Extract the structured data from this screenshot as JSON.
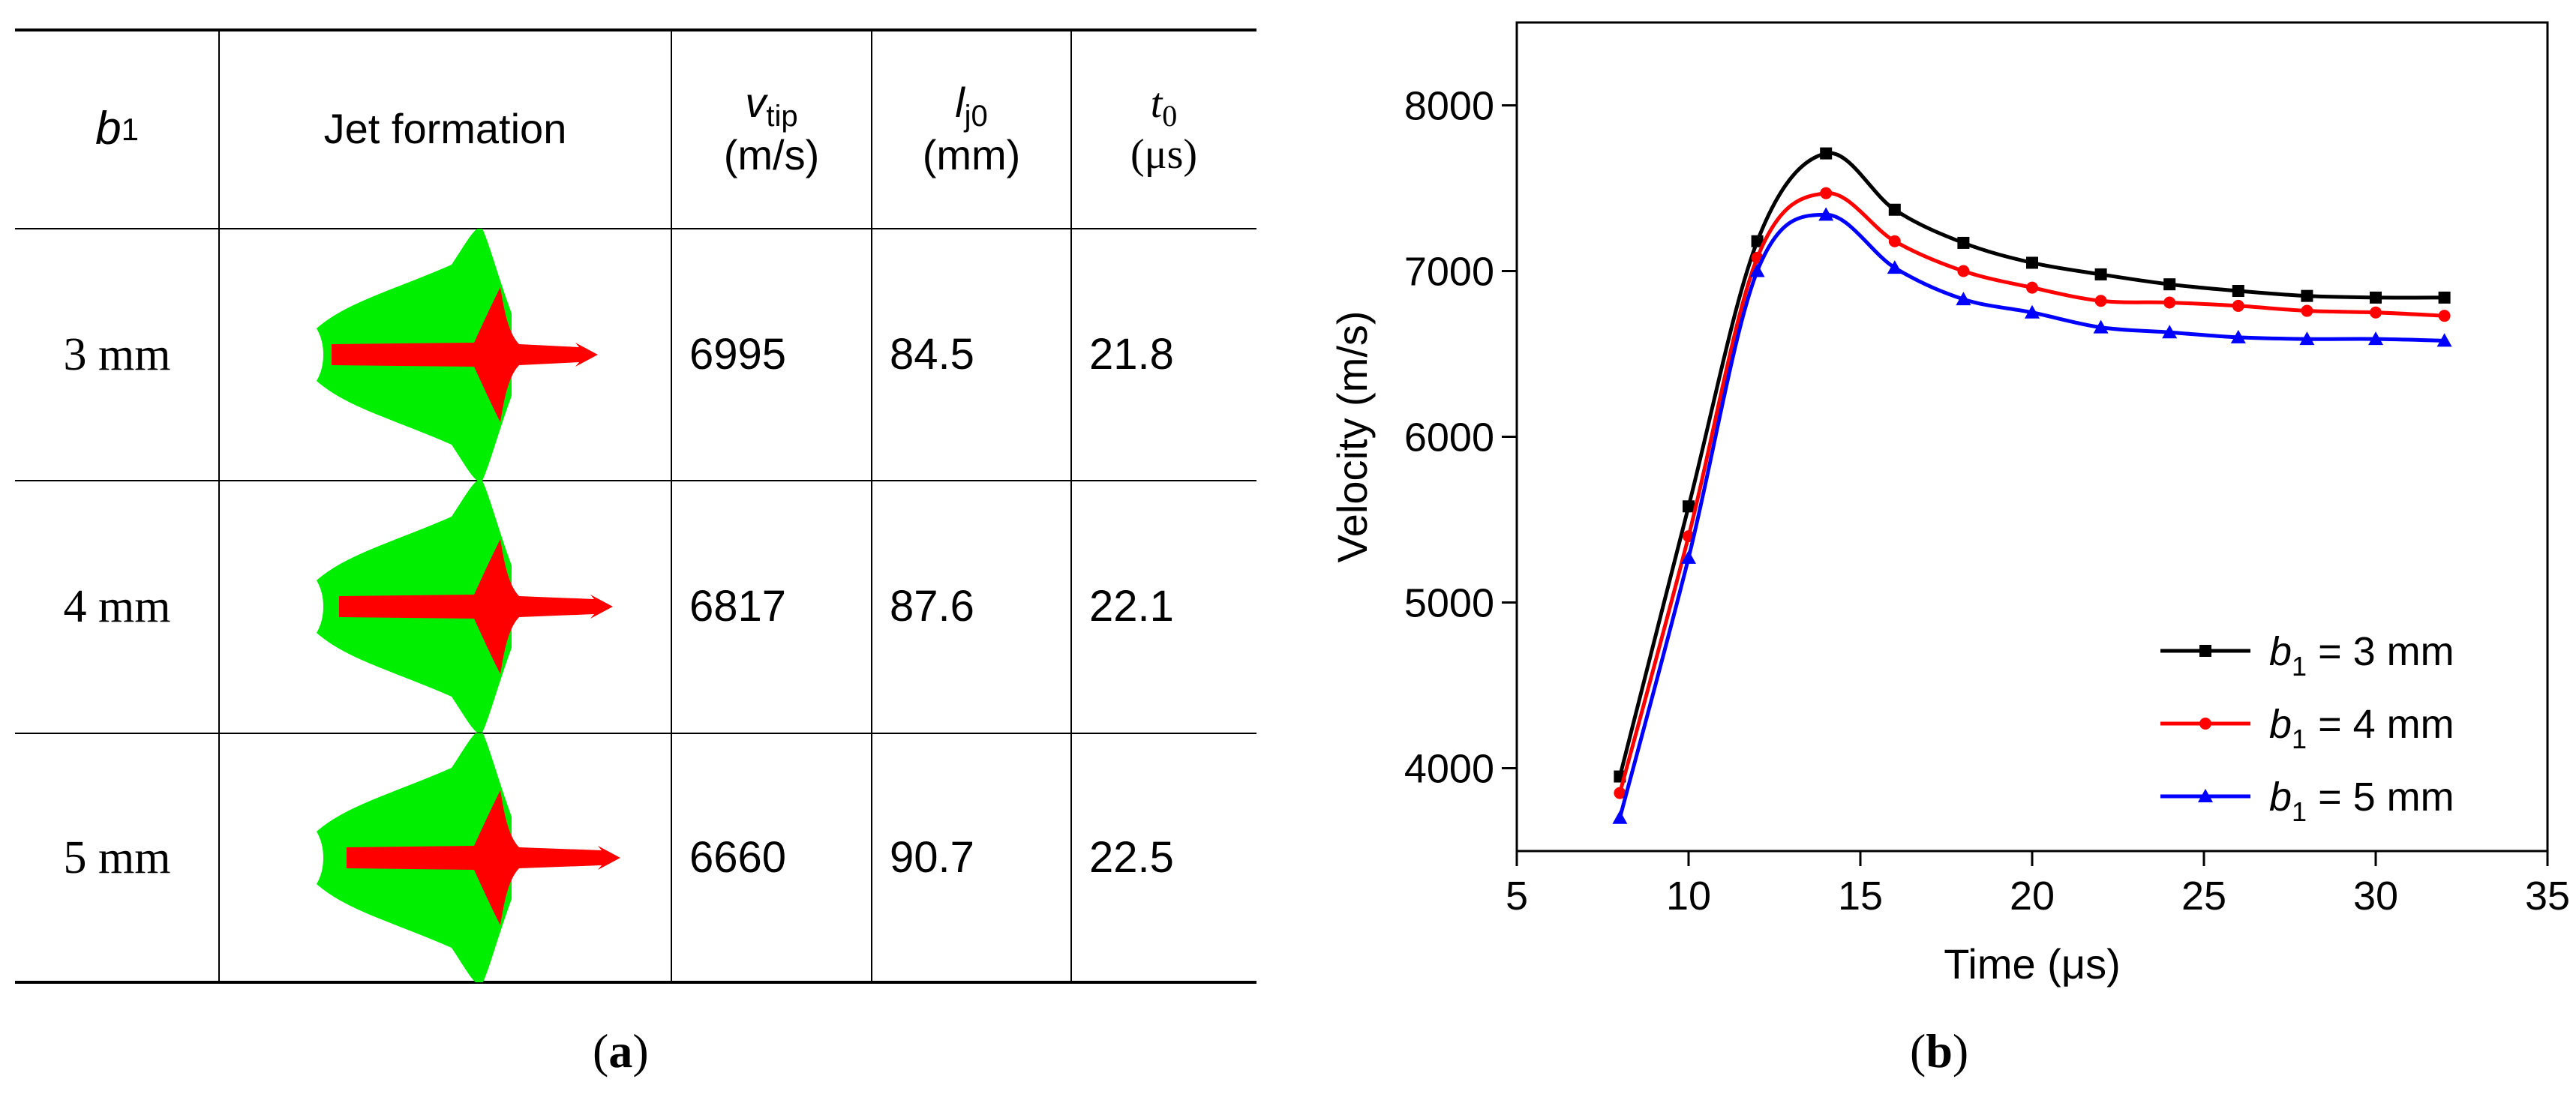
{
  "table": {
    "headers": {
      "b1": {
        "base": "b",
        "sub": "1"
      },
      "jet": "Jet  formation",
      "vtip": {
        "sym": "v",
        "sub": "tip",
        "unit": "(m/s)"
      },
      "lj0": {
        "sym": "l",
        "sub": "j0",
        "unit": "(mm)"
      },
      "t0": {
        "sym": "t",
        "sub": "0",
        "unit": "(μs)"
      }
    },
    "rows": [
      {
        "b1": "3 mm",
        "vtip": "6995",
        "lj0": "84.5",
        "t0": "21.8"
      },
      {
        "b1": "4 mm",
        "vtip": "6817",
        "lj0": "87.6",
        "t0": "22.1"
      },
      {
        "b1": "5 mm",
        "vtip": "6660",
        "lj0": "90.7",
        "t0": "22.5"
      }
    ],
    "colors": {
      "liner": "#00ee00",
      "jet": "#ff0000"
    }
  },
  "captions": {
    "a": "a",
    "b": "b"
  },
  "chart_data": {
    "type": "line",
    "title": "",
    "xlabel": "Time (μs)",
    "ylabel": "Velocity (m/s)",
    "xlim": [
      5,
      35
    ],
    "ylim": [
      3500,
      8500
    ],
    "xticks": [
      5,
      10,
      15,
      20,
      25,
      30,
      35
    ],
    "yticks": [
      4000,
      5000,
      6000,
      7000,
      8000
    ],
    "grid": false,
    "legend_position": "bottom-right",
    "x": [
      8,
      10,
      12,
      14,
      16,
      18,
      20,
      22,
      24,
      26,
      28,
      30,
      32
    ],
    "series": [
      {
        "name": "b1 = 3 mm",
        "label_prefix": "b",
        "label_sub": "1",
        "label_rest": " = 3 mm",
        "color": "#000000",
        "marker": "square",
        "values": [
          3950,
          5580,
          7180,
          7710,
          7370,
          7170,
          7050,
          6980,
          6920,
          6880,
          6850,
          6840,
          6840
        ]
      },
      {
        "name": "b1 = 4 mm",
        "label_prefix": "b",
        "label_sub": "1",
        "label_rest": " = 4 mm",
        "color": "#ff0000",
        "marker": "circle",
        "values": [
          3850,
          5400,
          7080,
          7470,
          7180,
          7000,
          6900,
          6820,
          6810,
          6790,
          6760,
          6750,
          6730
        ]
      },
      {
        "name": "b1 = 5 mm",
        "label_prefix": "b",
        "label_sub": "1",
        "label_rest": " = 5 mm",
        "color": "#0000ff",
        "marker": "triangle",
        "values": [
          3700,
          5270,
          7000,
          7340,
          7020,
          6830,
          6750,
          6660,
          6630,
          6600,
          6590,
          6590,
          6580
        ]
      }
    ]
  }
}
